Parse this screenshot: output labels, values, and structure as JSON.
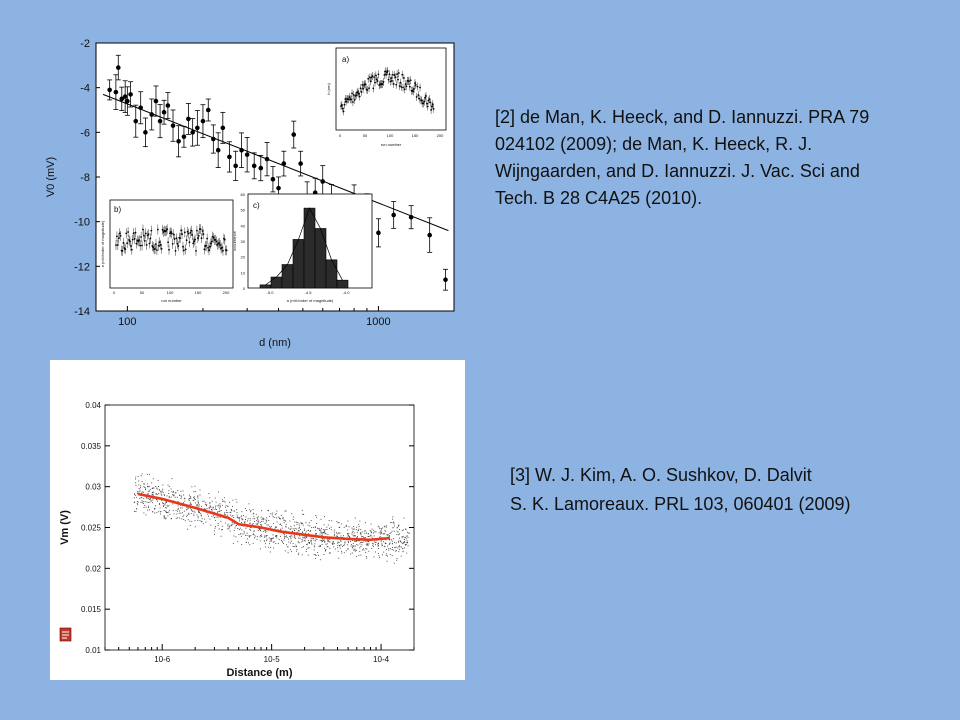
{
  "references": {
    "ref2": [
      "[2] de Man, K. Heeck, and D. Iannuzzi. PRA 79",
      "024102 (2009);  de Man, K. Heeck, R. J.",
      "Wijngaarden, and D. Iannuzzi. J. Vac. Sci and",
      "Tech. B 28 C4A25 (2010)."
    ],
    "ref3": [
      "[3] W. J. Kim, A. O. Sushkov, D. Dalvit",
      "S. K. Lamoreaux. PRL 103, 060401 (2009)"
    ]
  },
  "colors": {
    "background": "#8db3e2",
    "fit_line": "#e8381c",
    "points": "#000000"
  },
  "icons": {
    "note": "document-icon"
  },
  "chart_data": [
    {
      "type": "scatter",
      "xlabel": "d (nm)",
      "ylabel": "V0 (mV)",
      "xscale": "log",
      "xlim": [
        75,
        2000
      ],
      "ylim": [
        -14,
        -2
      ],
      "xticks": [
        "100",
        "1000"
      ],
      "yticks": [
        "-2",
        "-4",
        "-6",
        "-8",
        "-10",
        "-12",
        "-14"
      ],
      "points": [
        [
          85,
          -4.1
        ],
        [
          90,
          -4.2
        ],
        [
          92,
          -3.1
        ],
        [
          95,
          -4.5
        ],
        [
          98,
          -4.4
        ],
        [
          100,
          -4.6
        ],
        [
          103,
          -4.3
        ],
        [
          108,
          -5.5
        ],
        [
          113,
          -4.9
        ],
        [
          118,
          -6.0
        ],
        [
          125,
          -5.2
        ],
        [
          130,
          -4.6
        ],
        [
          135,
          -5.5
        ],
        [
          140,
          -5.1
        ],
        [
          145,
          -4.8
        ],
        [
          152,
          -5.7
        ],
        [
          160,
          -6.4
        ],
        [
          168,
          -6.2
        ],
        [
          175,
          -5.4
        ],
        [
          182,
          -6.0
        ],
        [
          190,
          -5.8
        ],
        [
          200,
          -5.5
        ],
        [
          210,
          -5.0
        ],
        [
          220,
          -6.3
        ],
        [
          230,
          -6.8
        ],
        [
          240,
          -5.8
        ],
        [
          255,
          -7.1
        ],
        [
          270,
          -7.5
        ],
        [
          285,
          -6.8
        ],
        [
          300,
          -7.0
        ],
        [
          320,
          -7.5
        ],
        [
          340,
          -7.6
        ],
        [
          360,
          -7.2
        ],
        [
          380,
          -8.1
        ],
        [
          400,
          -8.5
        ],
        [
          420,
          -7.4
        ],
        [
          460,
          -6.1
        ],
        [
          490,
          -7.4
        ],
        [
          520,
          -9.0
        ],
        [
          560,
          -8.7
        ],
        [
          600,
          -8.2
        ],
        [
          650,
          -9.1
        ],
        [
          720,
          -9.5
        ],
        [
          800,
          -8.9
        ],
        [
          900,
          -9.4
        ],
        [
          1000,
          -10.5
        ],
        [
          1150,
          -9.7
        ],
        [
          1350,
          -9.8
        ],
        [
          1600,
          -10.6
        ],
        [
          1850,
          -12.6
        ]
      ],
      "fit": [
        [
          80,
          -4.3
        ],
        [
          1900,
          -10.4
        ]
      ],
      "insets": [
        {
          "label": "a)",
          "xlabel": "run number",
          "ylabel": "h (nm)",
          "xticks": [
            "0",
            "50",
            "100",
            "150",
            "200"
          ]
        },
        {
          "label": "b)",
          "xlabel": "run number",
          "ylabel": "a (mV/order of magnitude)",
          "xticks": [
            "0",
            "50",
            "100",
            "150",
            "200"
          ]
        },
        {
          "label": "c)",
          "type": "bar",
          "xlabel": "a (mV/order of magnitude)",
          "ylabel": "occurrence",
          "xticks": [
            "-5.0",
            "-4.5",
            "-4.0"
          ],
          "yticks": [
            "0",
            "10",
            "20",
            "30",
            "40",
            "50",
            "60"
          ],
          "values": [
            2,
            7,
            15,
            31,
            51,
            38,
            18,
            5
          ]
        }
      ]
    },
    {
      "type": "scatter",
      "xlabel": "Distance (m)",
      "ylabel": "Vm (V)",
      "xscale": "log",
      "xlim": [
        3e-07,
        0.0002
      ],
      "ylim": [
        0.01,
        0.04
      ],
      "yticks": [
        "0.01",
        "0.015",
        "0.02",
        "0.025",
        "0.03",
        "0.035",
        "0.04"
      ],
      "xticks": [
        "10-6",
        "10-5",
        "10-4"
      ],
      "fit_series": [
        [
          6e-07,
          0.0291
        ],
        [
          1e-06,
          0.0285
        ],
        [
          2e-06,
          0.0274
        ],
        [
          4e-06,
          0.0262
        ],
        [
          5e-06,
          0.0254
        ],
        [
          8e-06,
          0.025
        ],
        [
          1.2e-05,
          0.0245
        ],
        [
          2e-05,
          0.0241
        ],
        [
          3e-05,
          0.0238
        ],
        [
          5e-05,
          0.0236
        ],
        [
          8e-05,
          0.0235
        ],
        [
          0.00012,
          0.0237
        ]
      ]
    }
  ]
}
